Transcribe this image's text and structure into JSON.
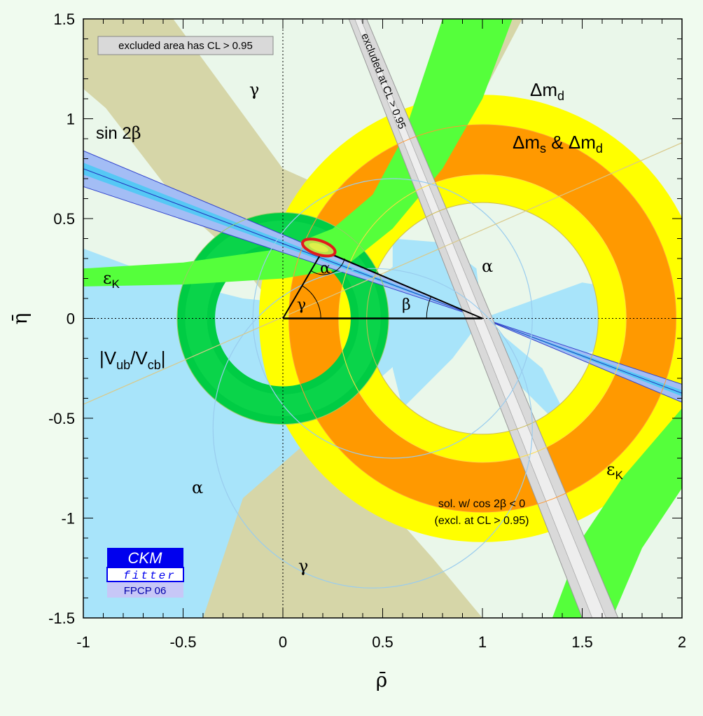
{
  "chart_data": {
    "type": "contour",
    "title": "",
    "xlabel": "ρ̄",
    "ylabel": "η̄",
    "xlim": [
      -1,
      2
    ],
    "ylim": [
      -1.5,
      1.5
    ],
    "x_ticks": [
      -1,
      -0.5,
      0,
      0.5,
      1,
      1.5,
      2
    ],
    "y_ticks": [
      -1.5,
      -1,
      -0.5,
      0,
      0.5,
      1,
      1.5
    ],
    "x_tick_labels": [
      "-1",
      "-0.5",
      "0",
      "0.5",
      "1",
      "1.5",
      "2"
    ],
    "y_tick_labels": [
      "-1.5",
      "-1",
      "-0.5",
      "0",
      "0.5",
      "1",
      "1.5"
    ],
    "grid": false,
    "legend_note": "excluded area has CL > 0.95",
    "apex": {
      "rho": 0.2,
      "eta": 0.34
    },
    "constraints": [
      {
        "name": "Δm_d",
        "shape": "annulus",
        "center": [
          1,
          0
        ],
        "r_inner": 0.58,
        "r_outer": 1.12,
        "color": "#ffff00"
      },
      {
        "name": "Δm_s & Δm_d",
        "shape": "annulus",
        "center": [
          1,
          0
        ],
        "r_inner": 0.72,
        "r_outer": 0.97,
        "color": "#ff9900"
      },
      {
        "name": "|V_ub/V_cb|",
        "shape": "annulus",
        "center": [
          0,
          0
        ],
        "r_inner": 0.34,
        "r_outer": 0.53,
        "color": "#00cc44"
      },
      {
        "name": "sin 2β",
        "shape": "wedge",
        "vertex": [
          1,
          0
        ],
        "slopes_deg": [
          -19.8,
          -21.3
        ],
        "color": "#55c8f5"
      },
      {
        "name": "ε_K",
        "shape": "hyperbolic-band",
        "color": "#55ff3b"
      },
      {
        "name": "α",
        "shape": "region",
        "color": "#a8e4fa"
      },
      {
        "name": "γ",
        "shape": "region",
        "color": "#d6d6a8"
      },
      {
        "name": "excluded at CL > 0.95",
        "shape": "band",
        "color": "#d9d9d9"
      }
    ],
    "annotations": {
      "gamma_top": "γ",
      "gamma_bottom": "γ",
      "gamma_angle": "γ",
      "alpha_right": "α",
      "alpha_bottom": "α",
      "alpha_angle": "α",
      "beta_angle": "β",
      "sin2b_prefix": "sin 2",
      "sin2b_beta": "β",
      "dmd_prefix": "Δm",
      "dmd_sub": "d",
      "dms_prefix": "Δm",
      "dms_sub": "s",
      "dms_amp": " & Δm",
      "dms_sub2": "d",
      "eps": "ε",
      "eps_sub": "K",
      "vub_open": "|V",
      "vub_sub1": "ub",
      "vub_mid": "/V",
      "vub_sub2": "cb",
      "vub_close": "|",
      "excluded_band": "excluded at CL > 0.95",
      "sol_line1": "sol. w/ cos 2β < 0",
      "sol_line2": "(excl. at CL > 0.95)"
    }
  },
  "logo": {
    "line1": "CKM",
    "line2": "fitter",
    "line3": "FPCP 06"
  }
}
